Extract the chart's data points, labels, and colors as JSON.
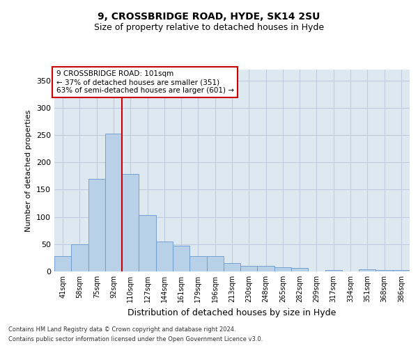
{
  "title_line1": "9, CROSSBRIDGE ROAD, HYDE, SK14 2SU",
  "title_line2": "Size of property relative to detached houses in Hyde",
  "xlabel": "Distribution of detached houses by size in Hyde",
  "ylabel": "Number of detached properties",
  "categories": [
    "41sqm",
    "58sqm",
    "75sqm",
    "92sqm",
    "110sqm",
    "127sqm",
    "144sqm",
    "161sqm",
    "179sqm",
    "196sqm",
    "213sqm",
    "230sqm",
    "248sqm",
    "265sqm",
    "282sqm",
    "299sqm",
    "317sqm",
    "334sqm",
    "351sqm",
    "368sqm",
    "386sqm"
  ],
  "values": [
    28,
    50,
    170,
    253,
    178,
    103,
    55,
    47,
    28,
    28,
    15,
    10,
    10,
    8,
    7,
    0,
    3,
    0,
    4,
    3,
    2
  ],
  "bar_color": "#b8d0e8",
  "bar_edge_color": "#6699cc",
  "vline_color": "#cc0000",
  "annotation_text": "9 CROSSBRIDGE ROAD: 101sqm\n← 37% of detached houses are smaller (351)\n63% of semi-detached houses are larger (601) →",
  "annotation_box_color": "#ffffff",
  "annotation_box_edge": "#cc0000",
  "annotation_fontsize": 7.5,
  "ylim": [
    0,
    370
  ],
  "yticks": [
    0,
    50,
    100,
    150,
    200,
    250,
    300,
    350
  ],
  "ax_bg_color": "#dde8f0",
  "background_color": "#ffffff",
  "grid_color": "#c0ccdd",
  "footer_line1": "Contains HM Land Registry data © Crown copyright and database right 2024.",
  "footer_line2": "Contains public sector information licensed under the Open Government Licence v3.0.",
  "title_fontsize": 10,
  "subtitle_fontsize": 9,
  "ylabel_fontsize": 8,
  "xlabel_fontsize": 9
}
